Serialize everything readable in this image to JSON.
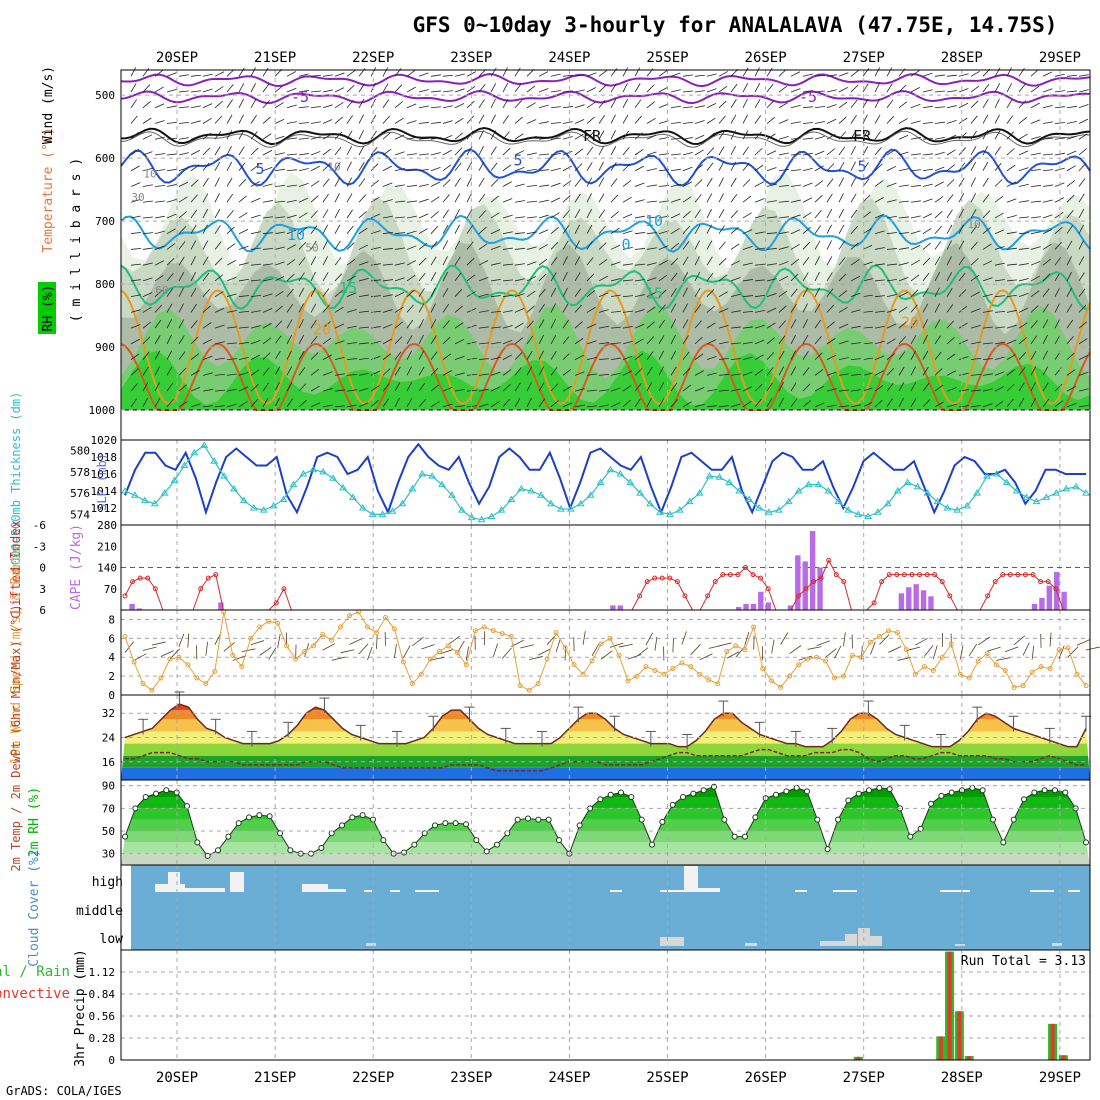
{
  "title": "GFS 0~10day 3-hourly for ANALALAVA (47.75E, 14.75S)",
  "credit": "GrADS: COLA/IGES",
  "date_labels": [
    "20SEP",
    "21SEP",
    "22SEP",
    "23SEP",
    "24SEP",
    "25SEP",
    "26SEP",
    "27SEP",
    "28SEP",
    "29SEP"
  ],
  "colors": {
    "rh_green": "#00cc00",
    "temp_orange": "#e08a1e",
    "slp_blue": "#1b3fc9",
    "thick_cyan": "#2cbfc9",
    "lifted_red": "#d62a2a",
    "cape_purple": "#b86be8",
    "wind_orange": "#e8a03a",
    "rh2_green": "#00b400",
    "cloud_blue": "#6aaed6",
    "precip_green": "#2eb82e",
    "precip_red": "#e03a2a"
  },
  "chart_data": [
    {
      "type": "heatmap",
      "panel": "upper-air",
      "labels": {
        "rh": "RH (%)",
        "temperature": "Temperature (°C)",
        "wind": "Wind (m/s)",
        "ylabel": "( m i l l i b a r s )"
      },
      "y_ticks": [
        500,
        600,
        700,
        800,
        900,
        1000
      ],
      "ylim": [
        1000,
        460
      ],
      "contour_labels": [
        "-5",
        "-5",
        "FR",
        "FR",
        "5",
        "5",
        "5",
        "10",
        "10",
        "10",
        "0",
        "15",
        "15",
        "20",
        "20",
        "10",
        "30",
        "50",
        "60",
        "10"
      ]
    },
    {
      "type": "line",
      "panel": "thickness-slp",
      "labels": {
        "left": "1000-500mb Thickness (dm)",
        "right": "SLP (mb)"
      },
      "left_ticks": [
        574,
        576,
        578,
        580
      ],
      "right_ticks": [
        1012,
        1014,
        1016,
        1018,
        1020
      ],
      "left_ylim": [
        573,
        581
      ],
      "right_ylim": [
        1010,
        1020
      ],
      "series": [
        {
          "name": "SLP (mb)",
          "axis": "right",
          "values": [
            1013.5,
            1016.5,
            1018.5,
            1018.5,
            1017,
            1016.5,
            1018.5,
            1015.5,
            1011.5,
            1015,
            1018,
            1019,
            1018,
            1017,
            1017,
            1018,
            1013.5,
            1011.5,
            1014.5,
            1018,
            1018.5,
            1018,
            1016,
            1016.5,
            1018,
            1014,
            1011.5,
            1015,
            1018,
            1019.5,
            1018,
            1017,
            1016.5,
            1018,
            1015,
            1012.5,
            1014.5,
            1018,
            1019,
            1018,
            1016.5,
            1016.5,
            1018.5,
            1015.5,
            1012,
            1015,
            1018.5,
            1019,
            1018,
            1017,
            1016.5,
            1018,
            1014.5,
            1011.5,
            1014.5,
            1018,
            1018.5,
            1017.5,
            1016.5,
            1016.5,
            1018,
            1014,
            1011.5,
            1014.5,
            1017.5,
            1018.5,
            1018,
            1016.5,
            1016.5,
            1017.5,
            1014.5,
            1012,
            1014.5,
            1017.5,
            1018.5,
            1017.5,
            1016.5,
            1016.5,
            1017.5,
            1014.5,
            1011.5,
            1014,
            1017,
            1018,
            1017.5,
            1016,
            1016,
            1016.5,
            1015,
            1012.5,
            1014,
            1016.5,
            1016.5,
            1016,
            1016,
            1016
          ]
        },
        {
          "name": "1000-500mb Thickness (dm)",
          "axis": "left",
          "values": [
            576.2,
            575.8,
            575.3,
            575.0,
            576.0,
            577.2,
            578.6,
            579.8,
            580.5,
            579.0,
            577.6,
            576.4,
            575.3,
            574.6,
            574.4,
            574.8,
            575.4,
            576.8,
            577.8,
            578.2,
            578.0,
            577.4,
            576.5,
            575.6,
            574.6,
            574.0,
            574.0,
            574.3,
            575.0,
            576.4,
            577.8,
            577.6,
            576.8,
            575.8,
            574.4,
            573.7,
            573.5,
            573.8,
            574.4,
            575.4,
            576.4,
            576.2,
            575.8,
            575.0,
            574.5,
            574.5,
            575.0,
            575.8,
            577.0,
            578.2,
            577.8,
            577.0,
            576.0,
            575.0,
            574.2,
            574.0,
            574.4,
            575.2,
            576.0,
            577.6,
            577.5,
            577.0,
            576.2,
            575.4,
            574.6,
            574.2,
            574.4,
            575.2,
            576.2,
            576.8,
            576.8,
            576.2,
            575.2,
            574.4,
            574.0,
            573.8,
            574.2,
            575.0,
            576.2,
            577.0,
            576.6,
            576.0,
            575.2,
            574.6,
            574.4,
            574.8,
            576.0,
            577.6,
            577.8,
            577.0,
            576.2,
            575.6,
            575.2,
            575.6,
            576.0,
            576.4,
            576.6,
            576.0
          ]
        }
      ]
    },
    {
      "type": "bar",
      "panel": "cape-lifted-index",
      "labels": {
        "left": "Lifted Index",
        "right": "CAPE (J/kg)"
      },
      "li_ticks": [
        -6,
        -3,
        0,
        3,
        6
      ],
      "li_tick_labels": [
        "-6",
        "-3",
        "0",
        "3",
        "6"
      ],
      "li_ylim": [
        -6,
        6
      ],
      "cape_ticks": [
        70,
        140,
        210,
        280
      ],
      "cape_ylim": [
        0,
        280
      ],
      "series": [
        {
          "name": "CAPE (J/kg)",
          "values": [
            0,
            20,
            5,
            0,
            0,
            0,
            0,
            0,
            0,
            0,
            0,
            0,
            0,
            25,
            0,
            0,
            0,
            0,
            0,
            0,
            0,
            0,
            0,
            0,
            0,
            0,
            0,
            0,
            0,
            0,
            0,
            0,
            0,
            0,
            0,
            0,
            0,
            0,
            0,
            0,
            0,
            0,
            0,
            0,
            0,
            0,
            0,
            0,
            0,
            0,
            0,
            0,
            0,
            0,
            0,
            0,
            0,
            0,
            0,
            0,
            0,
            0,
            0,
            0,
            0,
            0,
            15,
            15,
            0,
            0,
            0,
            0,
            0,
            0,
            0,
            0,
            0,
            0,
            0,
            0,
            0,
            0,
            0,
            10,
            20,
            20,
            60,
            25,
            0,
            0,
            15,
            180,
            160,
            260,
            140,
            0,
            0,
            0,
            0,
            0,
            0,
            0,
            0,
            0,
            0,
            55,
            75,
            85,
            65,
            45,
            0,
            0,
            0,
            0,
            0,
            0,
            0,
            0,
            0,
            0,
            0,
            0,
            0,
            20,
            40,
            80,
            125,
            60,
            0,
            0,
            0
          ]
        },
        {
          "name": "Lifted Index",
          "values": [
            4,
            2,
            1.5,
            1.5,
            3,
            6,
            6,
            6,
            6,
            6,
            3,
            1.5,
            1,
            6,
            6,
            6,
            6,
            6,
            6,
            6,
            5,
            3,
            6,
            6,
            6,
            6,
            6,
            6,
            6,
            6,
            6,
            6,
            6,
            6,
            6,
            6,
            6,
            6,
            6,
            6,
            6,
            6,
            6,
            6,
            6,
            6,
            6,
            6,
            6,
            6,
            6,
            6,
            6,
            6,
            6,
            6,
            6,
            6,
            6,
            6,
            6,
            6,
            6,
            6,
            6,
            6,
            6,
            6,
            4,
            2,
            1.5,
            1.5,
            1.5,
            2,
            4,
            6,
            6,
            4,
            2,
            1,
            1,
            1,
            0,
            1,
            1.5,
            3,
            6,
            6,
            6,
            4,
            3,
            2,
            1.5,
            -1,
            1,
            2,
            6,
            6,
            6,
            5,
            2,
            1,
            1,
            1,
            1,
            1,
            1,
            1,
            2,
            4,
            6,
            6,
            6,
            6,
            4,
            2,
            1,
            1,
            1,
            1,
            1,
            2,
            2,
            3,
            6,
            6,
            6,
            6
          ]
        }
      ]
    },
    {
      "type": "line",
      "panel": "10m-wind",
      "labels": {
        "ylabel": "10m Wind Speed (m/s) & Barbs"
      },
      "y_ticks": [
        0,
        2,
        4,
        6,
        8
      ],
      "ylim": [
        0,
        9
      ],
      "series": [
        {
          "name": "10m Wind Speed (m/s)",
          "values": [
            6.2,
            3.5,
            1.2,
            0.5,
            1.8,
            3.8,
            4.0,
            3.2,
            1.8,
            1.2,
            2.5,
            8.8,
            4.2,
            3.0,
            6.0,
            7.2,
            7.8,
            7.6,
            5.2,
            3.8,
            4.6,
            5.2,
            6.4,
            5.8,
            7.2,
            8.4,
            8.8,
            7.2,
            6.6,
            8.2,
            7.0,
            3.5,
            1.2,
            2.2,
            3.8,
            4.6,
            5.2,
            4.5,
            3.2,
            6.8,
            7.2,
            6.8,
            6.5,
            6.2,
            1.0,
            0.5,
            1.2,
            3.8,
            6.6,
            5.0,
            3.2,
            2.2,
            3.6,
            5.4,
            6.0,
            4.2,
            1.5,
            2.0,
            3.0,
            2.6,
            2.2,
            2.8,
            3.4,
            3.0,
            2.2,
            1.6,
            1.2,
            4.6,
            5.2,
            4.8,
            7.2,
            2.8,
            1.5,
            0.8,
            2.0,
            3.2,
            3.8,
            4.0,
            3.6,
            1.8,
            2.0,
            4.2,
            4.0,
            5.6,
            6.2,
            6.8,
            6.6,
            4.8,
            2.2,
            3.0,
            2.6,
            4.0,
            5.4,
            2.2,
            1.8,
            3.6,
            4.4,
            3.2,
            2.6,
            0.8,
            1.0,
            2.4,
            3.0,
            2.8,
            4.8,
            5.0,
            2.2,
            1.0
          ]
        }
      ]
    },
    {
      "type": "area",
      "panel": "2m-temp",
      "labels": {
        "ylabel": "2m Temp / 2m DewPt (6hr Min/Max) (°C)"
      },
      "y_ticks": [
        16,
        24,
        32
      ],
      "ylim": [
        10,
        38
      ],
      "series": [
        {
          "name": "2m Temp (°C)",
          "values": [
            24,
            25,
            26,
            27,
            30,
            33,
            35,
            34,
            30,
            27,
            26,
            24,
            23,
            22,
            22,
            22,
            22,
            23,
            25,
            28,
            32,
            34,
            33,
            30,
            27,
            25,
            24,
            23,
            22,
            22,
            22,
            22,
            23,
            24,
            27,
            31,
            33,
            33,
            30,
            27,
            25,
            24,
            23,
            22,
            22,
            22,
            22,
            22,
            24,
            27,
            30,
            32,
            32,
            30,
            27,
            25,
            24,
            23,
            22,
            22,
            22,
            21,
            21,
            23,
            26,
            30,
            32,
            32,
            29,
            27,
            25,
            24,
            23,
            22,
            22,
            21,
            21,
            21,
            23,
            26,
            30,
            32,
            32,
            30,
            27,
            25,
            24,
            23,
            22,
            21,
            21,
            21,
            23,
            26,
            30,
            32,
            31,
            29,
            27,
            26,
            25,
            24,
            23,
            22,
            21,
            21,
            27
          ]
        },
        {
          "name": "2m DewPt (°C)",
          "values": [
            17,
            17,
            18,
            19,
            19,
            19,
            18,
            17,
            17,
            16,
            16,
            16,
            16,
            15,
            15,
            15,
            15,
            15,
            15,
            15,
            16,
            16,
            16,
            15,
            14,
            14,
            14,
            14,
            14,
            14,
            14,
            14,
            14,
            14,
            14,
            14,
            15,
            15,
            15,
            15,
            14,
            13,
            13,
            13,
            13,
            13,
            13,
            14,
            15,
            16,
            16,
            16,
            16,
            15,
            15,
            15,
            15,
            15,
            16,
            17,
            18,
            19,
            19,
            18,
            18,
            18,
            18,
            18,
            18,
            19,
            20,
            20,
            19,
            18,
            18,
            18,
            19,
            19,
            19,
            20,
            20,
            19,
            17,
            16,
            17,
            18,
            18,
            17,
            17,
            18,
            19,
            19,
            18,
            18,
            18,
            18,
            17,
            17,
            16,
            16,
            16,
            17,
            18,
            17,
            16,
            15,
            15
          ]
        }
      ]
    },
    {
      "type": "area",
      "panel": "2m-rh",
      "labels": {
        "ylabel": "2m RH (%)"
      },
      "y_ticks": [
        30,
        50,
        70,
        90
      ],
      "ylim": [
        20,
        95
      ],
      "series": [
        {
          "name": "2m RH (%)",
          "values": [
            45,
            70,
            80,
            83,
            86,
            84,
            72,
            40,
            28,
            33,
            45,
            57,
            62,
            64,
            63,
            48,
            33,
            30,
            30,
            35,
            48,
            55,
            62,
            64,
            60,
            42,
            30,
            31,
            38,
            48,
            55,
            57,
            57,
            56,
            42,
            32,
            38,
            48,
            60,
            61,
            60,
            60,
            42,
            30,
            55,
            70,
            78,
            82,
            84,
            80,
            60,
            38,
            58,
            73,
            80,
            83,
            86,
            89,
            60,
            45,
            45,
            62,
            79,
            82,
            85,
            88,
            85,
            60,
            34,
            60,
            77,
            83,
            86,
            88,
            87,
            70,
            45,
            52,
            74,
            81,
            84,
            86,
            88,
            86,
            60,
            40,
            60,
            78,
            84,
            86,
            86,
            84,
            70,
            40
          ]
        }
      ]
    },
    {
      "type": "bar",
      "panel": "cloud-cover",
      "labels": {
        "ylabel": "Cloud Cover (%)",
        "high": "high",
        "middle": "middle",
        "low": "low"
      }
    },
    {
      "type": "bar",
      "panel": "precip",
      "labels": {
        "ylabel": "3hr Precip (mm)",
        "legend_total": "Total / Rain",
        "legend_conv": "Convective",
        "run_total": "Run Total = 3.13"
      },
      "y_ticks": [
        0,
        0.28,
        0.56,
        0.84,
        1.12
      ],
      "y_tick_labels": [
        "0",
        "0.28",
        "0.56",
        "0.84",
        "1.12"
      ],
      "ylim": [
        0,
        1.4
      ],
      "series": [
        {
          "name": "3hr Precip (mm)",
          "bars": [
            {
              "t": 6.94,
              "value": 0.04
            },
            {
              "t": 7.78,
              "value": 0.3
            },
            {
              "t": 7.87,
              "value": 1.38
            },
            {
              "t": 7.97,
              "value": 0.62
            },
            {
              "t": 8.07,
              "value": 0.05
            },
            {
              "t": 8.92,
              "value": 0.46
            },
            {
              "t": 9.03,
              "value": 0.06
            },
            {
              "t": 9.92,
              "value": 0.25
            }
          ]
        }
      ]
    }
  ]
}
